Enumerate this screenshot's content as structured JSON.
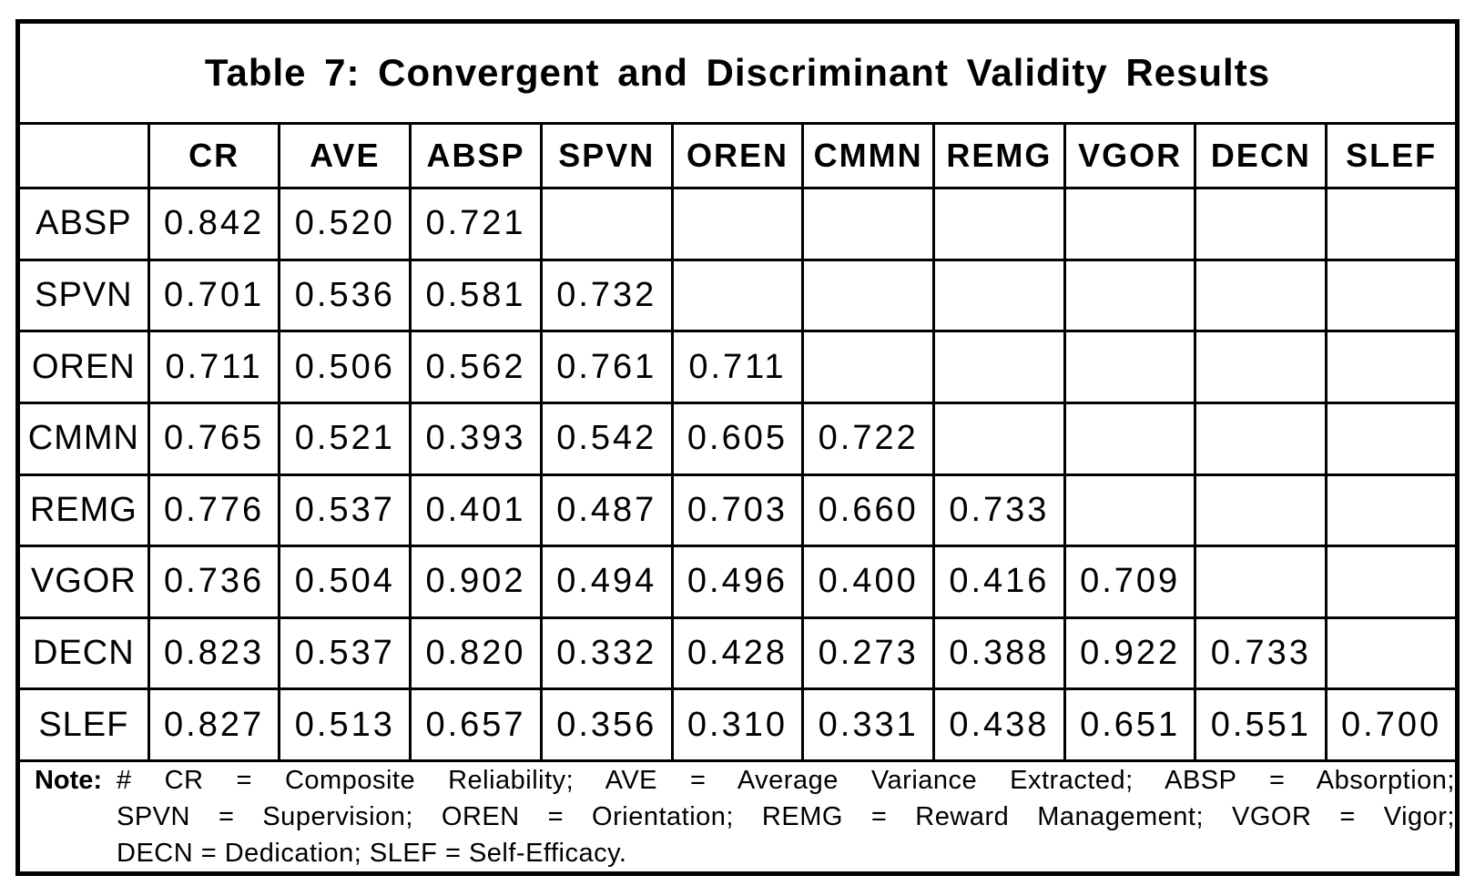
{
  "title": "Table 7: Convergent and Discriminant Validity Results",
  "matrix": {
    "headers": [
      "",
      "CR",
      "AVE",
      "ABSP",
      "SPVN",
      "OREN",
      "CMMN",
      "REMG",
      "VGOR",
      "DECN",
      "SLEF"
    ],
    "rows": [
      {
        "label": "ABSP",
        "values": [
          "0.842",
          "0.520",
          "0.721",
          "",
          "",
          "",
          "",
          "",
          "",
          ""
        ]
      },
      {
        "label": "SPVN",
        "values": [
          "0.701",
          "0.536",
          "0.581",
          "0.732",
          "",
          "",
          "",
          "",
          "",
          ""
        ]
      },
      {
        "label": "OREN",
        "values": [
          "0.711",
          "0.506",
          "0.562",
          "0.761",
          "0.711",
          "",
          "",
          "",
          "",
          ""
        ]
      },
      {
        "label": "CMMN",
        "values": [
          "0.765",
          "0.521",
          "0.393",
          "0.542",
          "0.605",
          "0.722",
          "",
          "",
          "",
          ""
        ]
      },
      {
        "label": "REMG",
        "values": [
          "0.776",
          "0.537",
          "0.401",
          "0.487",
          "0.703",
          "0.660",
          "0.733",
          "",
          "",
          ""
        ]
      },
      {
        "label": "VGOR",
        "values": [
          "0.736",
          "0.504",
          "0.902",
          "0.494",
          "0.496",
          "0.400",
          "0.416",
          "0.709",
          "",
          ""
        ]
      },
      {
        "label": "DECN",
        "values": [
          "0.823",
          "0.537",
          "0.820",
          "0.332",
          "0.428",
          "0.273",
          "0.388",
          "0.922",
          "0.733",
          ""
        ]
      },
      {
        "label": "SLEF",
        "values": [
          "0.827",
          "0.513",
          "0.657",
          "0.356",
          "0.310",
          "0.331",
          "0.438",
          "0.651",
          "0.551",
          "0.700"
        ]
      }
    ]
  },
  "note": {
    "label": "Note:",
    "lines": [
      "# CR = Composite Reliability; AVE = Average Variance Extracted; ABSP = Absorption;",
      "SPVN = Supervision; OREN = Orientation; REMG = Reward Management; VGOR = Vigor;",
      "DECN = Dedication; SLEF = Self-Efficacy."
    ]
  },
  "colors": {
    "border": "#000000",
    "text": "#000000",
    "background": "#ffffff"
  }
}
